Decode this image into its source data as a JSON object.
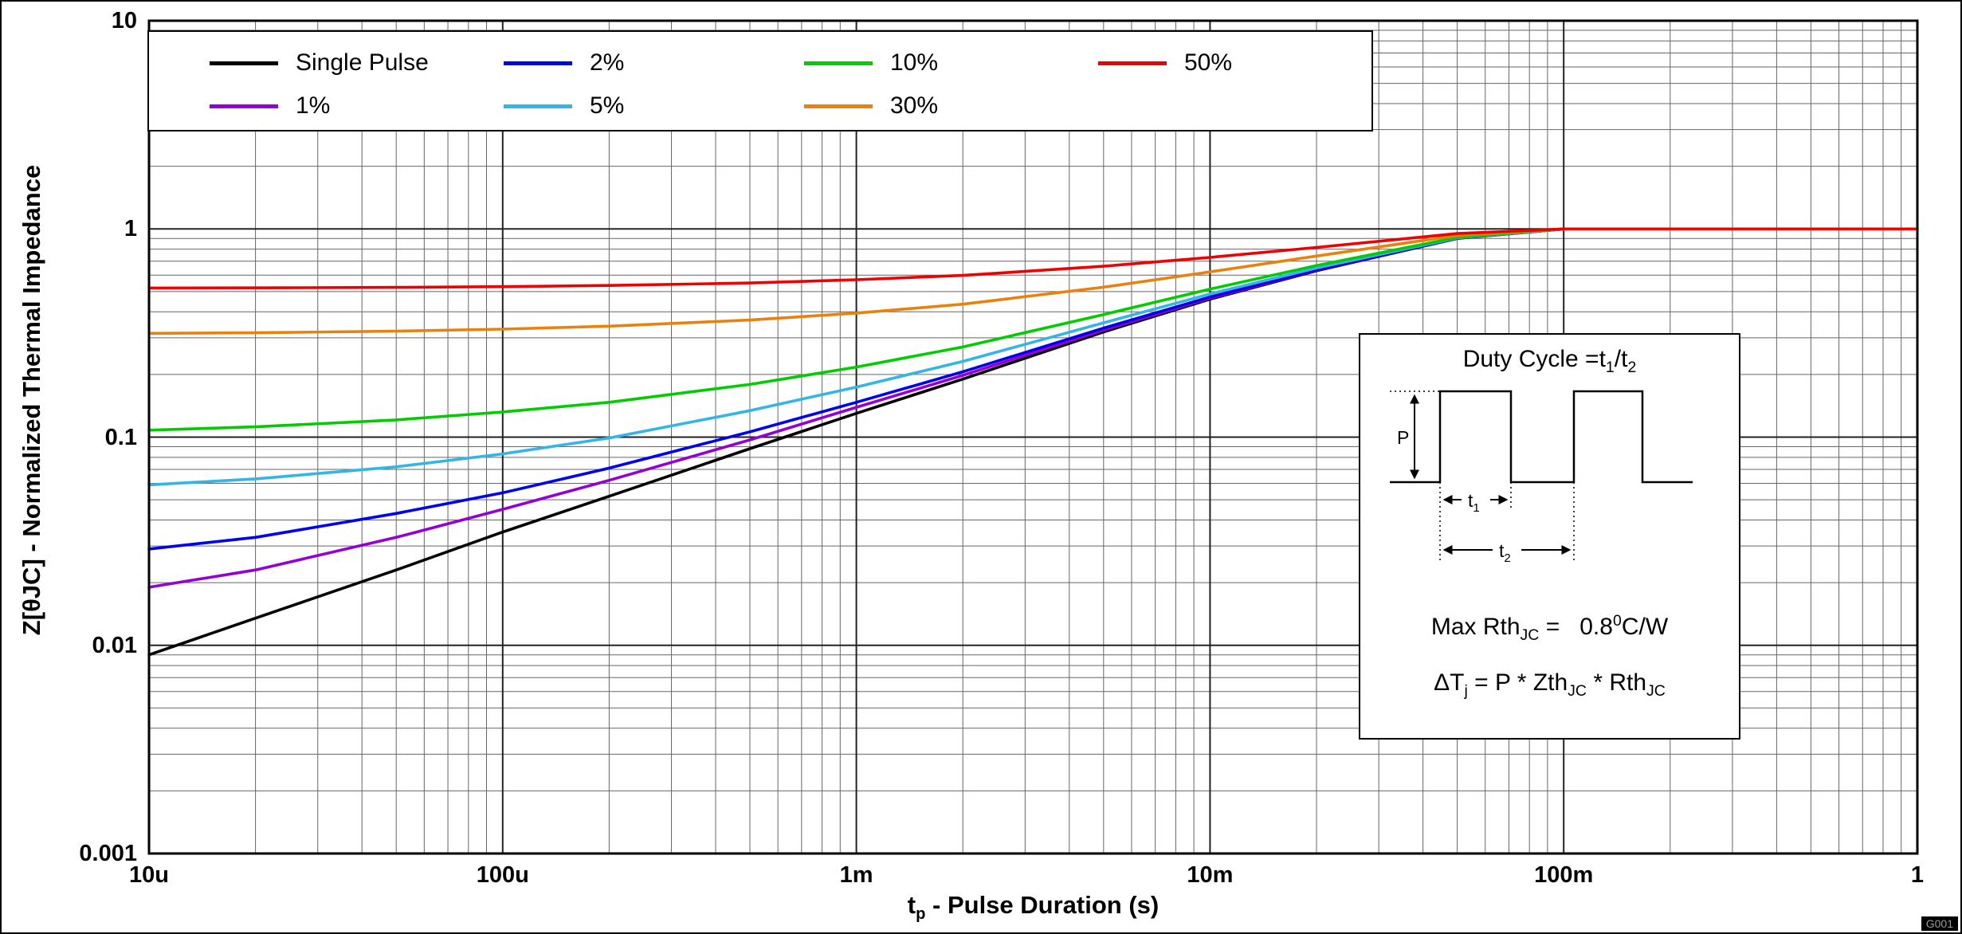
{
  "watermark": "G001",
  "display": {
    "x_label": {
      "base": "t",
      "sub": "p",
      "rest": " - Pulse Duration (s)"
    }
  },
  "inset": {
    "title_parts": [
      "Duty Cycle =t",
      "1",
      "/t",
      "2"
    ],
    "wave": {
      "p": "P",
      "t_base": "t",
      "t1_sub": "1",
      "t2_sub": "2"
    },
    "line1_parts": [
      "Max Rth",
      "JC",
      " =   0.8",
      "0",
      "C/W"
    ],
    "line2_parts": [
      "ΔT",
      "j",
      " = P * Zth",
      "JC",
      " * Rth",
      "JC"
    ]
  },
  "chart_data": {
    "type": "line",
    "title": "",
    "x_scale": "log",
    "y_scale": "log",
    "xlim": [
      1e-05,
      1
    ],
    "ylim": [
      0.001,
      10
    ],
    "xlabel": "tp - Pulse Duration (s)",
    "ylabel": "Z[θJC] - Normalized Thermal Impedance",
    "grid": "major and minor logarithmic gridlines on both axes",
    "legend_position": "top-left, 2 rows x 4 columns",
    "x_ticks": [
      {
        "label": "10u",
        "value": 1e-05
      },
      {
        "label": "100u",
        "value": 0.0001
      },
      {
        "label": "1m",
        "value": 0.001
      },
      {
        "label": "10m",
        "value": 0.01
      },
      {
        "label": "100m",
        "value": 0.1
      },
      {
        "label": "1",
        "value": 1
      }
    ],
    "y_ticks": [
      {
        "label": "10",
        "value": 10
      },
      {
        "label": "1",
        "value": 1
      },
      {
        "label": "0.1",
        "value": 0.1
      },
      {
        "label": "0.01",
        "value": 0.01
      },
      {
        "label": "0.001",
        "value": 0.001
      }
    ],
    "series": [
      {
        "name": "Single Pulse",
        "color": "#000000",
        "points": [
          [
            1e-05,
            0.009
          ],
          [
            2e-05,
            0.0135
          ],
          [
            5e-05,
            0.023
          ],
          [
            0.0001,
            0.035
          ],
          [
            0.0002,
            0.052
          ],
          [
            0.0005,
            0.088
          ],
          [
            0.001,
            0.13
          ],
          [
            0.002,
            0.19
          ],
          [
            0.005,
            0.32
          ],
          [
            0.01,
            0.46
          ],
          [
            0.02,
            0.63
          ],
          [
            0.05,
            0.9
          ],
          [
            0.1,
            1.0
          ]
        ]
      },
      {
        "name": "1%",
        "color": "#9400d3",
        "points": [
          [
            1e-05,
            0.019
          ],
          [
            2e-05,
            0.023
          ],
          [
            5e-05,
            0.033
          ],
          [
            0.0001,
            0.045
          ],
          [
            0.0002,
            0.062
          ],
          [
            0.0005,
            0.097
          ],
          [
            0.001,
            0.139
          ],
          [
            0.002,
            0.198
          ],
          [
            0.005,
            0.327
          ],
          [
            0.01,
            0.465
          ],
          [
            0.02,
            0.634
          ],
          [
            0.05,
            0.901
          ],
          [
            0.1,
            1.0
          ]
        ]
      },
      {
        "name": "2%",
        "color": "#0000ee",
        "points": [
          [
            1e-05,
            0.029
          ],
          [
            2e-05,
            0.033
          ],
          [
            5e-05,
            0.043
          ],
          [
            0.0001,
            0.054
          ],
          [
            0.0002,
            0.071
          ],
          [
            0.0005,
            0.106
          ],
          [
            0.001,
            0.147
          ],
          [
            0.002,
            0.206
          ],
          [
            0.005,
            0.334
          ],
          [
            0.01,
            0.471
          ],
          [
            0.02,
            0.637
          ],
          [
            0.05,
            0.902
          ],
          [
            0.1,
            1.0
          ]
        ]
      },
      {
        "name": "5%",
        "color": "#33b5e5",
        "points": [
          [
            1e-05,
            0.059
          ],
          [
            2e-05,
            0.063
          ],
          [
            5e-05,
            0.072
          ],
          [
            0.0001,
            0.083
          ],
          [
            0.0002,
            0.099
          ],
          [
            0.0005,
            0.134
          ],
          [
            0.001,
            0.174
          ],
          [
            0.002,
            0.231
          ],
          [
            0.005,
            0.354
          ],
          [
            0.01,
            0.487
          ],
          [
            0.02,
            0.649
          ],
          [
            0.05,
            0.905
          ],
          [
            0.1,
            1.0
          ]
        ]
      },
      {
        "name": "10%",
        "color": "#00cc00",
        "points": [
          [
            1e-05,
            0.108
          ],
          [
            2e-05,
            0.112
          ],
          [
            5e-05,
            0.121
          ],
          [
            0.0001,
            0.132
          ],
          [
            0.0002,
            0.147
          ],
          [
            0.0005,
            0.179
          ],
          [
            0.001,
            0.217
          ],
          [
            0.002,
            0.271
          ],
          [
            0.005,
            0.388
          ],
          [
            0.01,
            0.514
          ],
          [
            0.02,
            0.667
          ],
          [
            0.05,
            0.91
          ],
          [
            0.1,
            1.0
          ]
        ]
      },
      {
        "name": "30%",
        "color": "#e8820d",
        "points": [
          [
            1e-05,
            0.315
          ],
          [
            2e-05,
            0.317
          ],
          [
            5e-05,
            0.323
          ],
          [
            0.0001,
            0.33
          ],
          [
            0.0002,
            0.341
          ],
          [
            0.0005,
            0.365
          ],
          [
            0.001,
            0.394
          ],
          [
            0.002,
            0.435
          ],
          [
            0.005,
            0.525
          ],
          [
            0.01,
            0.622
          ],
          [
            0.02,
            0.741
          ],
          [
            0.05,
            0.93
          ],
          [
            0.1,
            1.0
          ]
        ]
      },
      {
        "name": "50%",
        "color": "#ee0000",
        "points": [
          [
            1e-05,
            0.52
          ],
          [
            2e-05,
            0.521
          ],
          [
            5e-05,
            0.524
          ],
          [
            0.0001,
            0.528
          ],
          [
            0.0002,
            0.535
          ],
          [
            0.0005,
            0.55
          ],
          [
            0.001,
            0.57
          ],
          [
            0.002,
            0.598
          ],
          [
            0.005,
            0.662
          ],
          [
            0.01,
            0.73
          ],
          [
            0.02,
            0.815
          ],
          [
            0.05,
            0.95
          ],
          [
            0.1,
            1.0
          ],
          [
            0.2,
            1.0
          ],
          [
            0.5,
            1.0
          ],
          [
            1,
            1.0
          ]
        ]
      }
    ]
  }
}
